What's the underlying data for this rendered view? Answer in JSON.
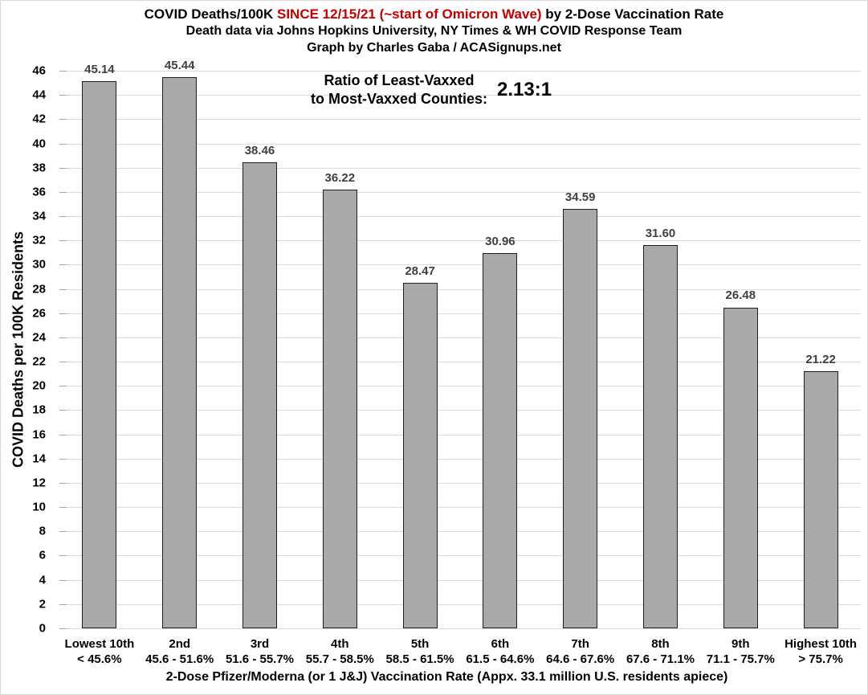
{
  "header": {
    "title_prefix": "COVID Deaths/100K ",
    "title_highlight": "SINCE 12/15/21 (~start of Omicron Wave)",
    "title_suffix": " by 2-Dose Vaccination Rate",
    "subtitle": "Death data via Johns Hopkins University, NY Times & WH COVID Response Team",
    "credit": "Graph by Charles Gaba / ACASignups.net"
  },
  "annotation": {
    "line1": "Ratio of Least-Vaxxed",
    "line2": "to Most-Vaxxed Counties:",
    "ratio": "2.13:1"
  },
  "chart_data": {
    "type": "bar",
    "title": "COVID Deaths/100K SINCE 12/15/21 (~start of Omicron Wave) by 2-Dose Vaccination Rate",
    "subtitle": "Death data via Johns Hopkins University, NY Times & WH COVID Response Team",
    "credit": "Graph by Charles Gaba / ACASignups.net",
    "categories": [
      "Lowest 10th",
      "2nd",
      "3rd",
      "4th",
      "5th",
      "6th",
      "7th",
      "8th",
      "9th",
      "Highest 10th"
    ],
    "category_ranges": [
      "< 45.6%",
      "45.6 - 51.6%",
      "51.6 - 55.7%",
      "55.7 - 58.5%",
      "58.5 - 61.5%",
      "61.5 - 64.6%",
      "64.6 - 67.6%",
      "67.6 - 71.1%",
      "71.1 - 75.7%",
      "> 75.7%"
    ],
    "values": [
      45.14,
      45.44,
      38.46,
      36.22,
      28.47,
      30.96,
      34.59,
      31.6,
      26.48,
      21.22
    ],
    "value_labels": [
      "45.14",
      "45.44",
      "38.46",
      "36.22",
      "28.47",
      "30.96",
      "34.59",
      "31.60",
      "26.48",
      "21.22"
    ],
    "xlabel": "2-Dose Pfizer/Moderna (or 1 J&J) Vaccination Rate (Appx. 33.1 million U.S. residents apiece)",
    "ylabel": "COVID Deaths per 100K Residents",
    "ylim": [
      0,
      46
    ],
    "ytick_step": 2,
    "grid": true,
    "legend": "none",
    "annotation": "Ratio of Least-Vaxxed to Most-Vaxxed Counties: 2.13:1"
  },
  "colors": {
    "bar_fill": "#A9A9A9",
    "bar_border": "#1F1F1F",
    "title_highlight": "#C00000",
    "value_label": "#404040",
    "gridline": "#DBDBDB",
    "tick_mark": "#A6A6A6",
    "text": "#000000",
    "background": "#FFFFFF"
  }
}
